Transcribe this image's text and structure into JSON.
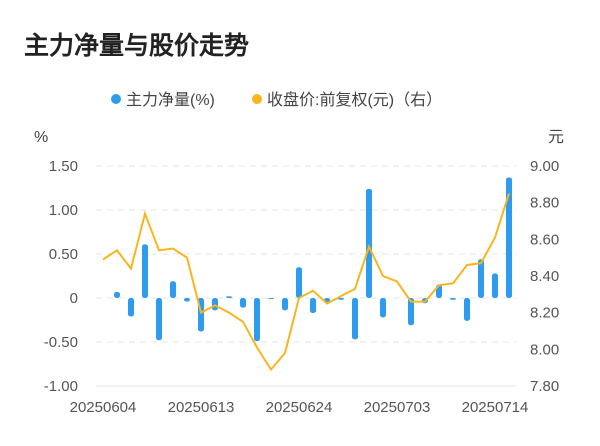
{
  "chart_data": {
    "type": "bar+line",
    "title": "主力净量与股价走势",
    "legend": [
      {
        "name": "主力净量(%)",
        "color": "#2e9bef",
        "marker": "circle"
      },
      {
        "name": "收盘价:前复权(元)（右）",
        "color": "#f8b61d",
        "marker": "circle"
      }
    ],
    "legend_position": "top-center",
    "left_axis": {
      "unit": "%",
      "ticks": [
        "1.50",
        "1.00",
        "0.50",
        "0",
        "-0.50",
        "-1.00"
      ],
      "ylim": [
        -1.0,
        1.5
      ]
    },
    "right_axis": {
      "unit": "元",
      "ticks": [
        "9.00",
        "8.80",
        "8.60",
        "8.40",
        "8.20",
        "8.00",
        "7.80"
      ],
      "ylim": [
        7.8,
        9.0
      ]
    },
    "x_tick_labels": [
      "20250604",
      "20250613",
      "20250624",
      "20250703",
      "20250714"
    ],
    "x": [
      "20250604",
      "20250605",
      "20250606",
      "20250609",
      "20250610",
      "20250611",
      "20250612",
      "20250613",
      "20250616",
      "20250617",
      "20250618",
      "20250619",
      "20250620",
      "20250623",
      "20250624",
      "20250625",
      "20250626",
      "20250627",
      "20250630",
      "20250701",
      "20250702",
      "20250703",
      "20250704",
      "20250707",
      "20250708",
      "20250709",
      "20250710",
      "20250711",
      "20250714",
      "20250715"
    ],
    "series": [
      {
        "name": "主力净量(%)",
        "type": "bar",
        "axis": "left",
        "values": [
          0,
          0.07,
          -0.21,
          0.61,
          -0.48,
          0.19,
          -0.04,
          -0.38,
          -0.14,
          0.02,
          -0.11,
          -0.49,
          -0.01,
          -0.14,
          0.35,
          -0.17,
          -0.05,
          -0.02,
          -0.47,
          1.24,
          -0.22,
          0.0,
          -0.31,
          -0.06,
          0.15,
          -0.02,
          -0.26,
          0.44,
          0.28,
          1.37
        ]
      },
      {
        "name": "收盘价:前复权(元)（右）",
        "type": "line",
        "axis": "right",
        "values": [
          8.49,
          8.54,
          8.44,
          8.74,
          8.54,
          8.55,
          8.5,
          8.2,
          8.24,
          8.2,
          8.15,
          8.01,
          7.89,
          7.98,
          8.28,
          8.32,
          8.25,
          8.29,
          8.33,
          8.56,
          8.4,
          8.37,
          8.26,
          8.26,
          8.35,
          8.36,
          8.46,
          8.47,
          8.61,
          8.85
        ]
      }
    ]
  }
}
